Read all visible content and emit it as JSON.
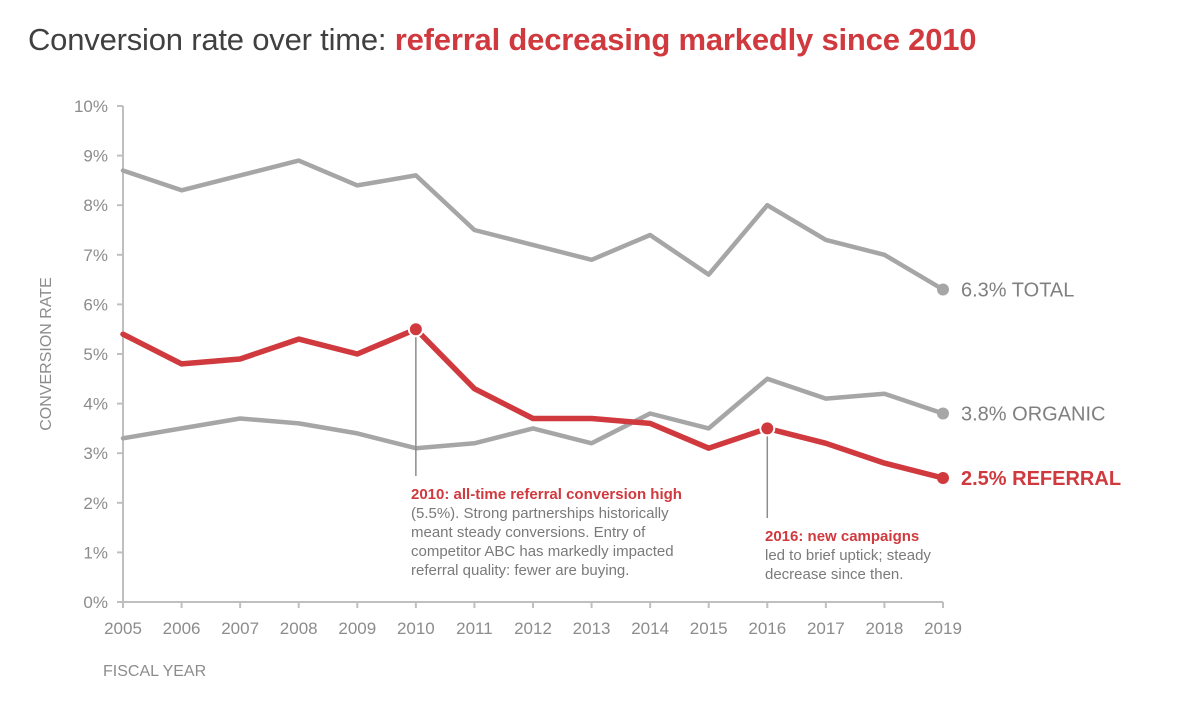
{
  "title": {
    "prefix": "Conversion rate over time: ",
    "highlight": "referral decreasing markedly since 2010"
  },
  "colors": {
    "accent": "#d0393e",
    "gray_series": "#a6a6a6",
    "axis": "#bfbfbf",
    "text": "#8c8c8c"
  },
  "chart_data": {
    "type": "line",
    "title": "Conversion rate over time: referral decreasing markedly since 2010",
    "xlabel": "FISCAL YEAR",
    "ylabel": "CONVERSION RATE",
    "ylim": [
      0,
      10
    ],
    "yticks": [
      "0%",
      "1%",
      "2%",
      "3%",
      "4%",
      "5%",
      "6%",
      "7%",
      "8%",
      "9%",
      "10%"
    ],
    "x": [
      "2005",
      "2006",
      "2007",
      "2008",
      "2009",
      "2010",
      "2011",
      "2012",
      "2013",
      "2014",
      "2015",
      "2016",
      "2017",
      "2018",
      "2019"
    ],
    "grid": false,
    "series": [
      {
        "name": "TOTAL",
        "end_label": "6.3% TOTAL",
        "color": "#a6a6a6",
        "values": [
          8.7,
          8.3,
          8.6,
          8.9,
          8.4,
          8.6,
          7.5,
          7.2,
          6.9,
          7.4,
          6.6,
          8.0,
          7.3,
          7.0,
          6.3
        ]
      },
      {
        "name": "ORGANIC",
        "end_label": "3.8% ORGANIC",
        "color": "#a6a6a6",
        "values": [
          3.3,
          3.5,
          3.7,
          3.6,
          3.4,
          3.1,
          3.2,
          3.5,
          3.2,
          3.8,
          3.5,
          4.5,
          4.1,
          4.2,
          3.8
        ]
      },
      {
        "name": "REFERRAL",
        "end_label": "2.5% REFERRAL",
        "color": "#d0393e",
        "emphasis": true,
        "values": [
          5.4,
          4.8,
          4.9,
          5.3,
          5.0,
          5.5,
          4.3,
          3.7,
          3.7,
          3.6,
          3.1,
          3.5,
          3.2,
          2.8,
          2.5
        ]
      }
    ],
    "annotations": [
      {
        "year": "2010",
        "series": "REFERRAL",
        "value": 5.5,
        "heading": "2010: all-time referral conversion high",
        "lines": [
          "(5.5%). Strong partnerships historically",
          "meant steady conversions. Entry of",
          "competitor ABC has markedly impacted",
          "referral quality: fewer are buying."
        ]
      },
      {
        "year": "2016",
        "series": "REFERRAL",
        "value": 3.5,
        "heading": "2016: new campaigns",
        "lines": [
          "led to brief uptick; steady",
          "decrease since then."
        ]
      }
    ]
  }
}
